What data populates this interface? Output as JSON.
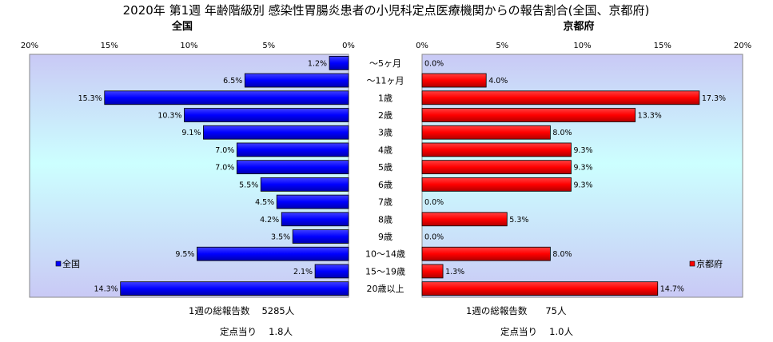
{
  "title": "2020年 第1週 年齢階級別 感染性胃腸炎患者の小児科定点医療機関からの報告割合(全国、京都府)",
  "footer": {
    "national_total": "1週の総報告数　 5285人",
    "national_per": "定点当り　 1.8人",
    "kyoto_total": "1週の総報告数　　75人",
    "kyoto_per": "定点当り　 1.0人"
  },
  "chart_data": [
    {
      "type": "bar",
      "orientation": "horizontal",
      "subtitle": "全国",
      "legend": "全国",
      "legend_position": "bottom-left",
      "color": "#0000ff",
      "x_reversed": true,
      "xlim": [
        0,
        20
      ],
      "xticks": [
        "20%",
        "15%",
        "10%",
        "5%",
        "0%"
      ],
      "categories": [
        "～5ヶ月",
        "～11ヶ月",
        "1歳",
        "2歳",
        "3歳",
        "4歳",
        "5歳",
        "6歳",
        "7歳",
        "8歳",
        "9歳",
        "10～14歳",
        "15～19歳",
        "20歳以上"
      ],
      "values": [
        1.2,
        6.5,
        15.3,
        10.3,
        9.1,
        7.0,
        7.0,
        5.5,
        4.5,
        4.2,
        3.5,
        9.5,
        2.1,
        14.3
      ],
      "labels": [
        "1.2%",
        "6.5%",
        "15.3%",
        "10.3%",
        "9.1%",
        "7.0%",
        "7.0%",
        "5.5%",
        "4.5%",
        "4.2%",
        "3.5%",
        "9.5%",
        "2.1%",
        "14.3%"
      ]
    },
    {
      "type": "bar",
      "orientation": "horizontal",
      "subtitle": "京都府",
      "legend": "京都府",
      "legend_position": "bottom-right",
      "color": "#ff0000",
      "x_reversed": false,
      "xlim": [
        0,
        20
      ],
      "xticks": [
        "0%",
        "5%",
        "10%",
        "15%",
        "20%"
      ],
      "categories": [
        "～5ヶ月",
        "～11ヶ月",
        "1歳",
        "2歳",
        "3歳",
        "4歳",
        "5歳",
        "6歳",
        "7歳",
        "8歳",
        "9歳",
        "10～14歳",
        "15～19歳",
        "20歳以上"
      ],
      "values": [
        0.0,
        4.0,
        17.3,
        13.3,
        8.0,
        9.3,
        9.3,
        9.3,
        0.0,
        5.3,
        0.0,
        8.0,
        1.3,
        14.7
      ],
      "labels": [
        "0.0%",
        "4.0%",
        "17.3%",
        "13.3%",
        "8.0%",
        "9.3%",
        "9.3%",
        "9.3%",
        "0.0%",
        "5.3%",
        "0.0%",
        "8.0%",
        "1.3%",
        "14.7%"
      ]
    }
  ]
}
